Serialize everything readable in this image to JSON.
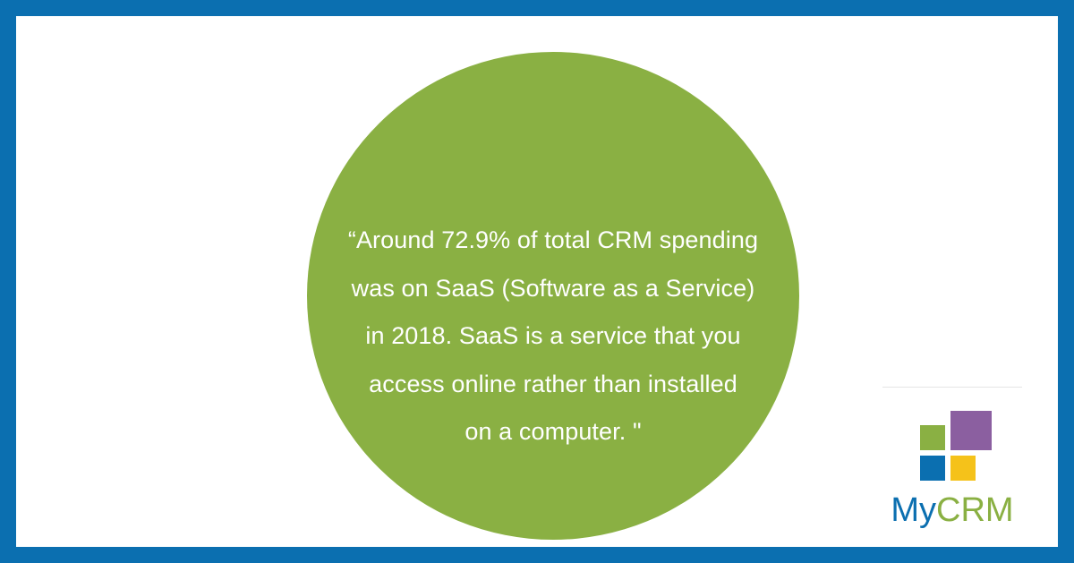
{
  "quote": {
    "lines": [
      "“Around 72.9% of total CRM spending",
      "was on SaaS (Software as a Service)",
      "in 2018. SaaS is a service that you",
      "access online rather than installed",
      "on a computer. \""
    ]
  },
  "logo": {
    "text_my": "My",
    "text_crm": "CRM"
  },
  "colors": {
    "border": "#0b6fb0",
    "circle": "#8ab043",
    "logo_green": "#8ab043",
    "logo_purple": "#8b5fa0",
    "logo_blue": "#0b6fb0",
    "logo_yellow": "#f5c21a"
  }
}
